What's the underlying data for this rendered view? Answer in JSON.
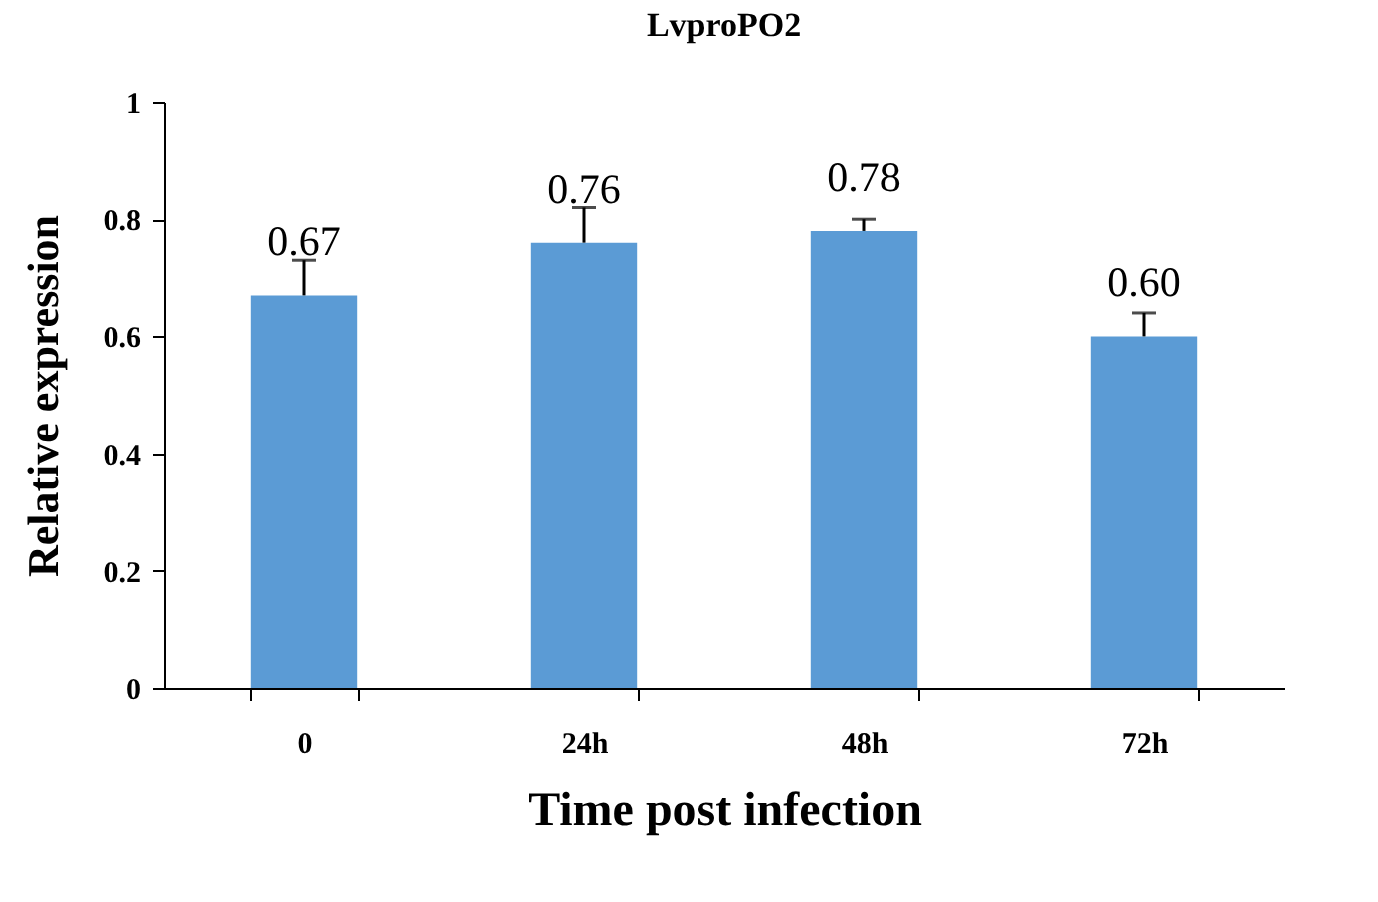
{
  "chart_data": {
    "type": "bar",
    "title": "LvproPO2",
    "xlabel": "Time post infection",
    "ylabel": "Relative expression",
    "categories": [
      "0",
      "24h",
      "48h",
      "72h"
    ],
    "values": [
      0.67,
      0.76,
      0.78,
      0.6
    ],
    "value_labels": [
      "0.67",
      "0.76",
      "0.78",
      "0.60"
    ],
    "errors": [
      [
        0.67,
        0.73
      ],
      [
        0.76,
        0.82
      ],
      [
        0.78,
        0.8
      ],
      [
        0.6,
        0.64
      ]
    ],
    "color": "#5b9bd5",
    "ylim": [
      0,
      1
    ],
    "yticks": [
      0,
      0.2,
      0.4,
      0.6,
      0.8,
      1
    ],
    "grid": false
  }
}
